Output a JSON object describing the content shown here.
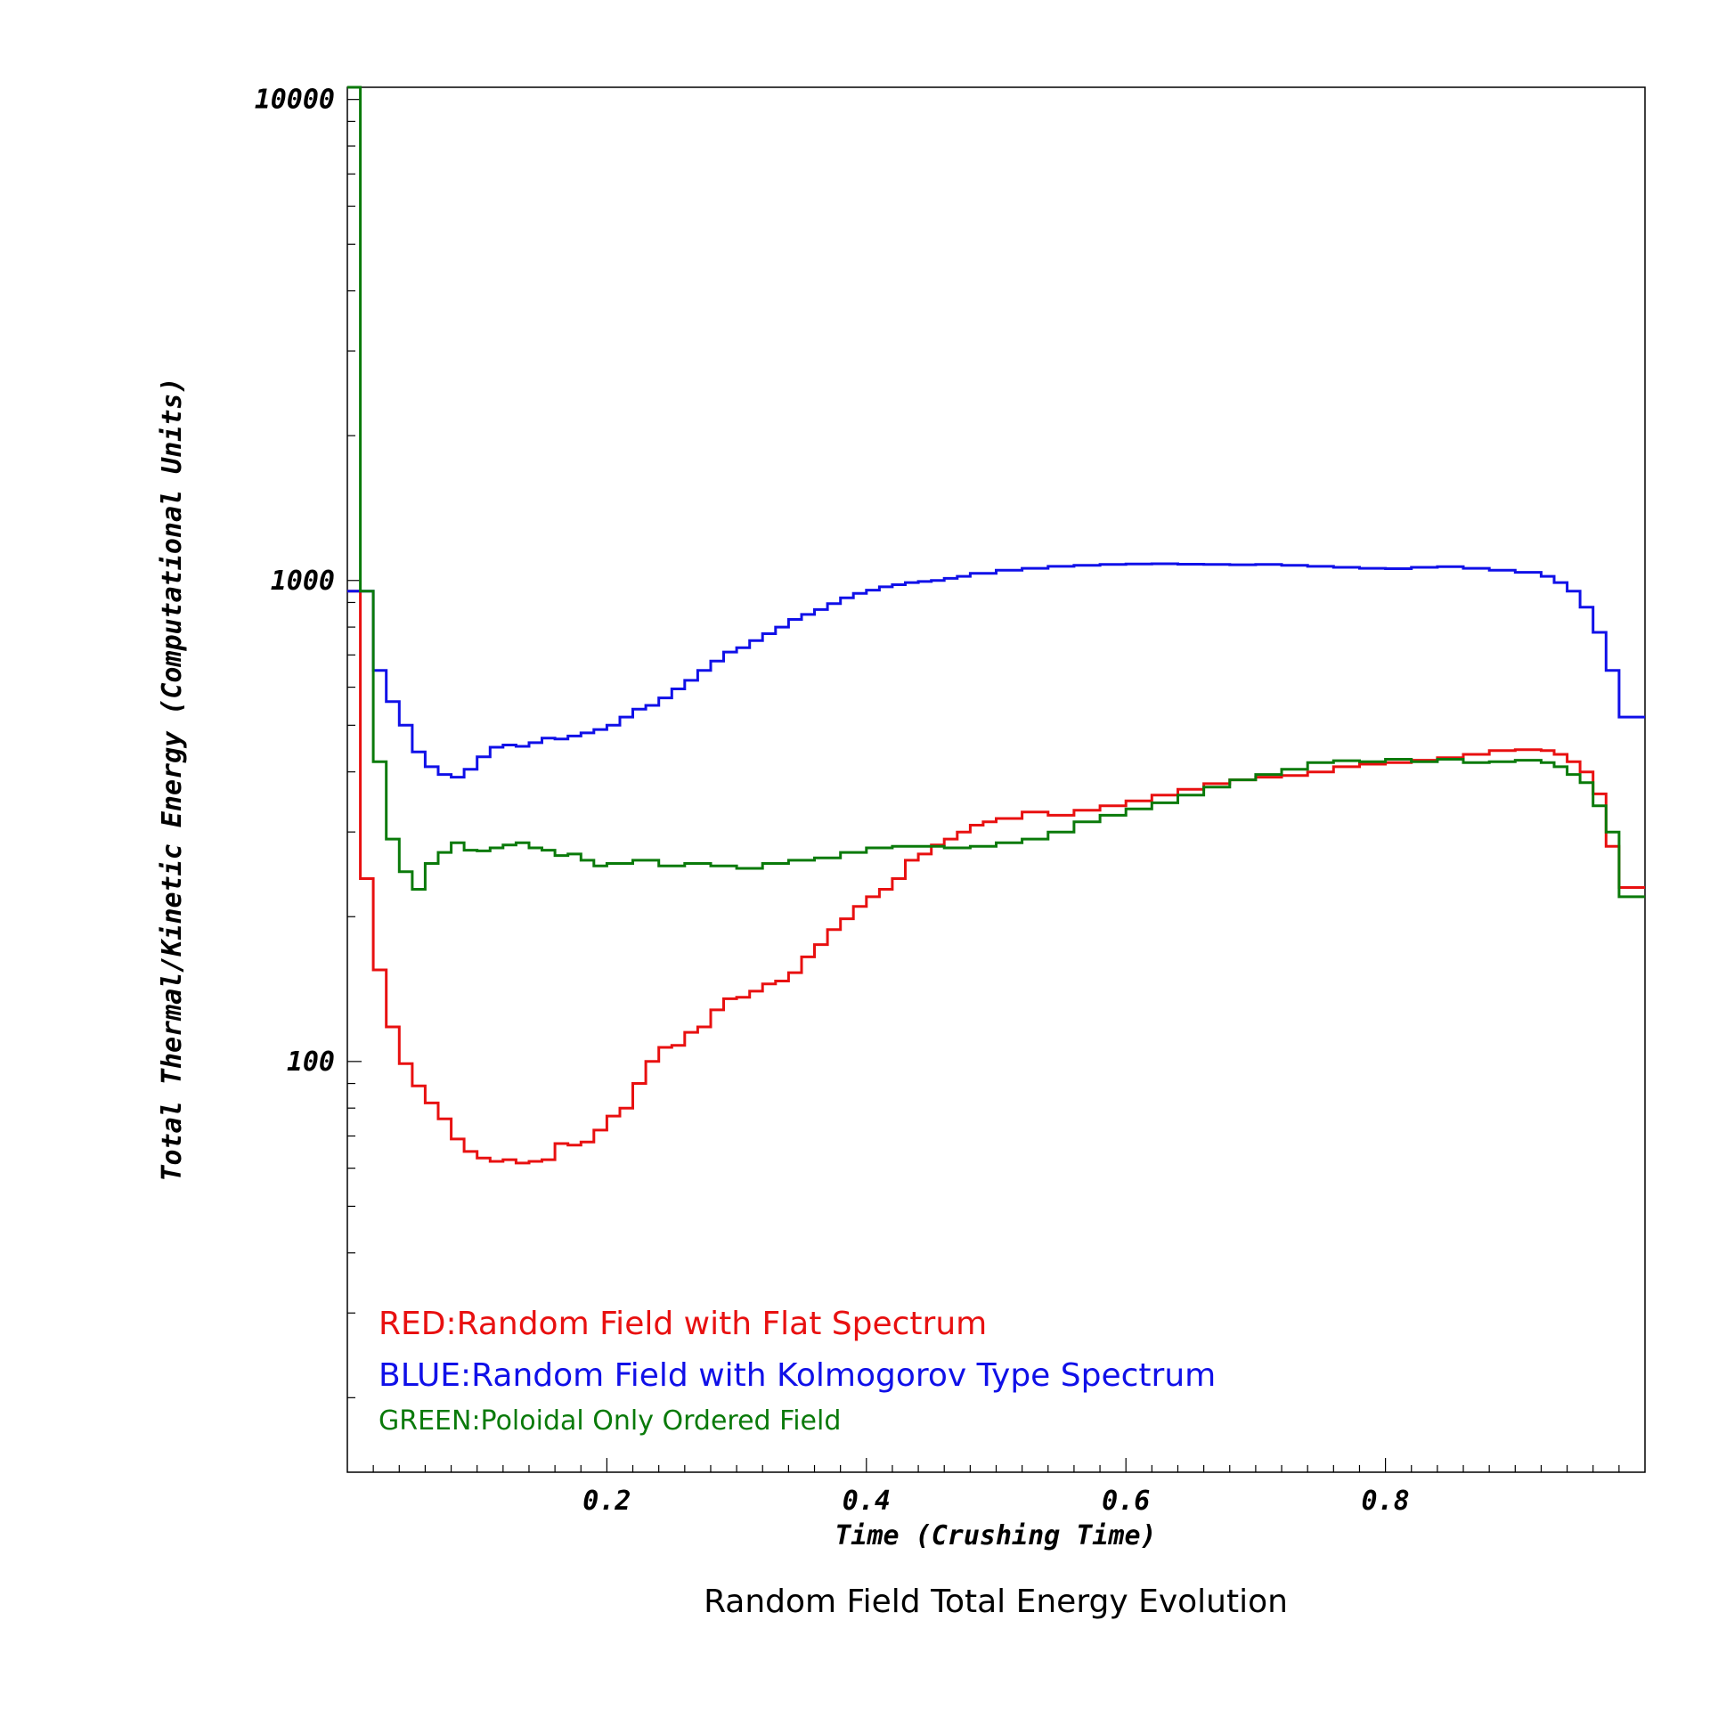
{
  "chart_data": {
    "type": "line",
    "step": true,
    "title": "Random Field Total Energy Evolution",
    "xlabel": "Time (Crushing Time)",
    "ylabel": "Total Thermal/Kinetic Energy (Computational Units)",
    "xlim": [
      0,
      1.0
    ],
    "ylim": [
      14,
      10600
    ],
    "yscale": "log",
    "grid": false,
    "x_ticks": [
      {
        "value": 0.2,
        "label": "0.2"
      },
      {
        "value": 0.4,
        "label": "0.4"
      },
      {
        "value": 0.6,
        "label": "0.6"
      },
      {
        "value": 0.8,
        "label": "0.8"
      }
    ],
    "y_ticks": [
      {
        "value": 100,
        "label": "100"
      },
      {
        "value": 1000,
        "label": "1000"
      },
      {
        "value": 10000,
        "label": "10000"
      }
    ],
    "legend": {
      "placement": "bottom-left",
      "entries": [
        {
          "text": "RED:Random Field with Flat Spectrum",
          "color": "#e81010"
        },
        {
          "text": "BLUE:Random Field with Kolmogorov Type Spectrum",
          "color": "#1010e8"
        },
        {
          "text": "GREEN:Poloidal Only Ordered Field",
          "color": "#0a7a0a"
        }
      ]
    },
    "series": [
      {
        "color": "#e81010",
        "x": [
          0.0,
          0.01,
          0.02,
          0.03,
          0.04,
          0.05,
          0.06,
          0.07,
          0.08,
          0.09,
          0.1,
          0.11,
          0.12,
          0.13,
          0.14,
          0.15,
          0.16,
          0.17,
          0.18,
          0.19,
          0.2,
          0.21,
          0.22,
          0.23,
          0.24,
          0.25,
          0.26,
          0.27,
          0.28,
          0.29,
          0.3,
          0.31,
          0.32,
          0.33,
          0.34,
          0.35,
          0.36,
          0.37,
          0.38,
          0.39,
          0.4,
          0.41,
          0.42,
          0.43,
          0.44,
          0.45,
          0.46,
          0.47,
          0.48,
          0.49,
          0.5,
          0.52,
          0.54,
          0.56,
          0.58,
          0.6,
          0.62,
          0.64,
          0.66,
          0.68,
          0.7,
          0.72,
          0.74,
          0.76,
          0.78,
          0.8,
          0.82,
          0.84,
          0.86,
          0.88,
          0.9,
          0.92,
          0.93,
          0.94,
          0.95,
          0.96,
          0.97,
          0.98,
          0.99,
          1.0
        ],
        "values": [
          950,
          240,
          155,
          118,
          99,
          89,
          82,
          76,
          69,
          65,
          63,
          62,
          62.5,
          61.5,
          62,
          62.5,
          67.5,
          67,
          68,
          72,
          77,
          80,
          90,
          100,
          107,
          108,
          115,
          118,
          128,
          135,
          136,
          140,
          145,
          147,
          153,
          165,
          175,
          188,
          198,
          210,
          220,
          228,
          240,
          262,
          270,
          282,
          290,
          300,
          310,
          315,
          320,
          330,
          325,
          333,
          340,
          348,
          358,
          368,
          378,
          385,
          390,
          393,
          400,
          410,
          415,
          418,
          423,
          428,
          435,
          443,
          445,
          443,
          435,
          420,
          400,
          360,
          280,
          230,
          230,
          230
        ]
      },
      {
        "color": "#1010e8",
        "x": [
          0.0,
          0.01,
          0.02,
          0.03,
          0.04,
          0.05,
          0.06,
          0.07,
          0.08,
          0.09,
          0.1,
          0.11,
          0.12,
          0.13,
          0.14,
          0.15,
          0.16,
          0.17,
          0.18,
          0.19,
          0.2,
          0.21,
          0.22,
          0.23,
          0.24,
          0.25,
          0.26,
          0.27,
          0.28,
          0.29,
          0.3,
          0.31,
          0.32,
          0.33,
          0.34,
          0.35,
          0.36,
          0.37,
          0.38,
          0.39,
          0.4,
          0.41,
          0.42,
          0.43,
          0.44,
          0.45,
          0.46,
          0.47,
          0.48,
          0.5,
          0.52,
          0.54,
          0.56,
          0.58,
          0.6,
          0.62,
          0.64,
          0.66,
          0.68,
          0.7,
          0.72,
          0.74,
          0.76,
          0.78,
          0.8,
          0.82,
          0.84,
          0.86,
          0.88,
          0.9,
          0.92,
          0.93,
          0.94,
          0.95,
          0.96,
          0.97,
          0.98,
          0.99,
          1.0
        ],
        "values": [
          950,
          950,
          650,
          560,
          500,
          440,
          410,
          395,
          390,
          405,
          430,
          450,
          455,
          452,
          460,
          470,
          468,
          475,
          482,
          490,
          500,
          520,
          540,
          550,
          570,
          595,
          620,
          650,
          680,
          710,
          725,
          750,
          775,
          800,
          830,
          850,
          870,
          895,
          920,
          940,
          955,
          970,
          980,
          990,
          995,
          1000,
          1010,
          1020,
          1035,
          1050,
          1060,
          1070,
          1075,
          1080,
          1082,
          1083,
          1081,
          1080,
          1078,
          1080,
          1075,
          1070,
          1065,
          1060,
          1058,
          1065,
          1068,
          1060,
          1050,
          1040,
          1020,
          990,
          950,
          880,
          780,
          650,
          520,
          520,
          520
        ]
      },
      {
        "color": "#0a7a0a",
        "x": [
          0.0,
          0.01,
          0.02,
          0.03,
          0.04,
          0.05,
          0.06,
          0.07,
          0.08,
          0.09,
          0.1,
          0.11,
          0.12,
          0.13,
          0.14,
          0.15,
          0.16,
          0.17,
          0.18,
          0.19,
          0.2,
          0.22,
          0.24,
          0.26,
          0.28,
          0.3,
          0.32,
          0.34,
          0.36,
          0.38,
          0.4,
          0.42,
          0.44,
          0.46,
          0.48,
          0.5,
          0.52,
          0.54,
          0.56,
          0.58,
          0.6,
          0.62,
          0.64,
          0.66,
          0.68,
          0.7,
          0.72,
          0.74,
          0.76,
          0.78,
          0.8,
          0.82,
          0.84,
          0.86,
          0.88,
          0.9,
          0.92,
          0.93,
          0.94,
          0.95,
          0.96,
          0.97,
          0.98,
          0.99,
          1.0
        ],
        "values": [
          10600,
          950,
          420,
          290,
          248,
          228,
          258,
          272,
          285,
          275,
          274,
          278,
          282,
          285,
          278,
          275,
          268,
          270,
          262,
          255,
          258,
          262,
          255,
          258,
          255,
          252,
          258,
          262,
          265,
          272,
          278,
          280,
          280,
          278,
          280,
          285,
          290,
          300,
          315,
          325,
          335,
          345,
          358,
          372,
          385,
          395,
          405,
          418,
          422,
          420,
          425,
          420,
          425,
          418,
          420,
          423,
          418,
          410,
          395,
          380,
          340,
          300,
          220,
          220,
          220
        ]
      }
    ]
  }
}
